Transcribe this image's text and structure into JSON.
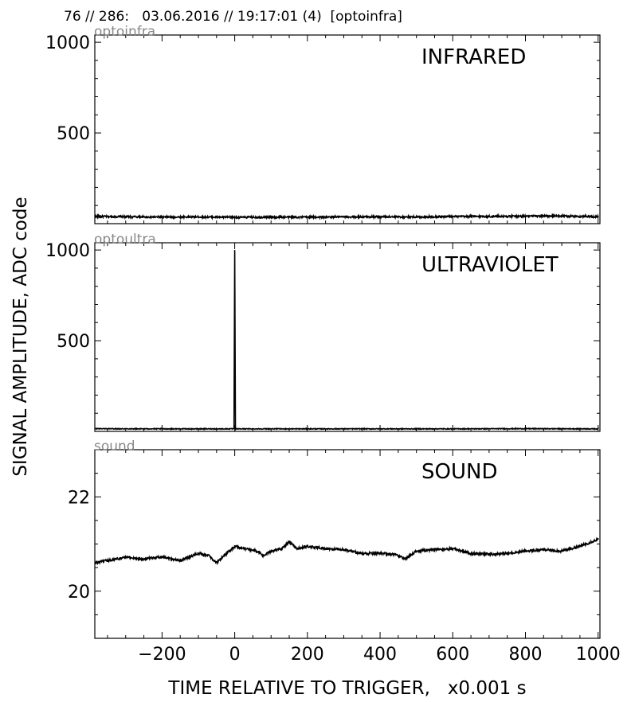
{
  "header": "76 // 286:   03.06.2016 // 19:17:01 (4)  [optoinfra]",
  "ylabel": "SIGNAL AMPLITUDE,  ADC code",
  "xlabel": "TIME RELATIVE TO TRIGGER,   x0.001 s",
  "colors": {
    "trace": "#000000",
    "channel_label": "#888888",
    "frame": "#000000"
  },
  "chart_data": [
    {
      "type": "line",
      "panel_title": "INFRARED",
      "channel": "optoinfra",
      "xlim": [
        -385,
        1005
      ],
      "ylim": [
        0,
        1040
      ],
      "yticks": [
        500,
        1000
      ],
      "ytick_labels": [
        "500",
        "1000"
      ],
      "xticks": [
        -200,
        0,
        200,
        400,
        600,
        800,
        1000
      ],
      "xtick_labels_visible": false,
      "series": [
        {
          "x": [
            -385,
            -300,
            -200,
            -100,
            0,
            100,
            200,
            300,
            400,
            500,
            600,
            700,
            800,
            900,
            1000
          ],
          "values": [
            40,
            38,
            36,
            37,
            35,
            36,
            36,
            37,
            38,
            37,
            39,
            40,
            41,
            42,
            38
          ],
          "noise": 5
        }
      ]
    },
    {
      "type": "line",
      "panel_title": "ULTRAVIOLET",
      "channel": "optoultra",
      "xlim": [
        -385,
        1005
      ],
      "ylim": [
        0,
        1040
      ],
      "yticks": [
        500,
        1000
      ],
      "ytick_labels": [
        "500",
        "1000"
      ],
      "xticks": [
        -200,
        0,
        200,
        400,
        600,
        800,
        1000
      ],
      "xtick_labels_visible": false,
      "series": [
        {
          "x": [
            -385,
            -200,
            -2,
            0,
            2,
            200,
            400,
            600,
            800,
            1000
          ],
          "values": [
            15,
            14,
            14,
            1000,
            14,
            14,
            14,
            14,
            15,
            14
          ],
          "noise": 2
        }
      ]
    },
    {
      "type": "line",
      "panel_title": "SOUND",
      "channel": "sound",
      "xlim": [
        -385,
        1005
      ],
      "ylim": [
        19,
        23
      ],
      "yticks": [
        20,
        22
      ],
      "ytick_labels": [
        "20",
        "22"
      ],
      "xticks": [
        -200,
        0,
        200,
        400,
        600,
        800,
        1000
      ],
      "xtick_labels": [
        "−200",
        "0",
        "200",
        "400",
        "600",
        "800",
        "1000"
      ],
      "series": [
        {
          "x": [
            -385,
            -350,
            -300,
            -250,
            -200,
            -150,
            -100,
            -70,
            -50,
            -30,
            0,
            30,
            60,
            80,
            100,
            130,
            150,
            170,
            200,
            250,
            300,
            350,
            400,
            440,
            470,
            500,
            550,
            600,
            650,
            700,
            750,
            800,
            850,
            900,
            950,
            1000
          ],
          "values": [
            20.6,
            20.65,
            20.72,
            20.68,
            20.73,
            20.65,
            20.8,
            20.75,
            20.6,
            20.75,
            20.95,
            20.9,
            20.85,
            20.75,
            20.85,
            20.9,
            21.05,
            20.9,
            20.95,
            20.9,
            20.88,
            20.8,
            20.8,
            20.78,
            20.68,
            20.85,
            20.88,
            20.9,
            20.8,
            20.78,
            20.8,
            20.85,
            20.88,
            20.85,
            20.95,
            21.1
          ],
          "noise": 0.025
        }
      ]
    }
  ]
}
